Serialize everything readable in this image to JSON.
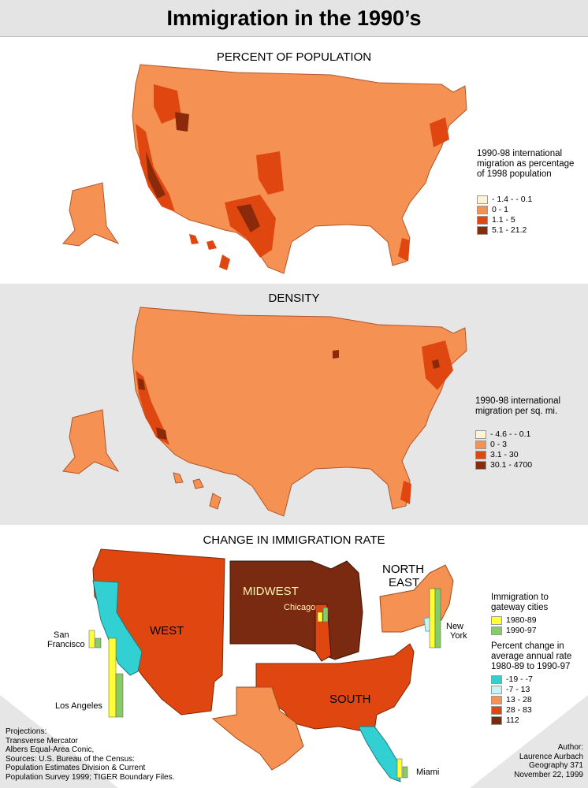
{
  "title": "Immigration in the 1990’s",
  "colors": {
    "level1": "#fdf3d6",
    "level2": "#f59253",
    "level3": "#e0460f",
    "level4": "#8a2a0a",
    "panel_gray": "#e6e6e6",
    "change_neg_big": "#33d0d3",
    "change_neg_small": "#c9f2f2",
    "change_mid": "#f59253",
    "change_high": "#e0460f",
    "change_top": "#7a2a10",
    "bar_1980s": "#ffff33",
    "bar_1990s": "#88cc66"
  },
  "panels": {
    "percent": {
      "title": "PERCENT OF POPULATION",
      "legend_title": "1990-98 international\nmigration as percentage\nof 1998 population",
      "legend": [
        "- 1.4 - - 0.1",
        "0 - 1",
        "1.1 - 5",
        "5.1 - 21.2"
      ]
    },
    "density": {
      "title": "DENSITY",
      "legend_title": "1990-98 international\nmigration per sq. mi.",
      "legend": [
        "- 4.6 - - 0.1",
        "0 - 3",
        "3.1 - 30",
        "30.1 - 4700"
      ]
    },
    "change": {
      "title": "CHANGE IN IMMIGRATION RATE",
      "regions": {
        "west": "WEST",
        "midwest": "MIDWEST",
        "south": "SOUTH",
        "northeast_line1": "NORTH",
        "northeast_line2": "EAST"
      },
      "cities": {
        "chicago": "Chicago",
        "san_francisco_line1": "San",
        "san_francisco_line2": "Francisco",
        "los_angeles": "Los Angeles",
        "new_york_line1": "New",
        "new_york_line2": "York",
        "miami": "Miami"
      },
      "bar_legend_title": "Immigration to\ngateway cities",
      "bar_legend": [
        "1980-89",
        "1990-97"
      ],
      "change_legend_title": "Percent change in\naverage annual rate\n1980-89 to 1990-97",
      "change_legend": [
        "-19 - -7",
        "-7 - 13",
        "13 - 28",
        "28 - 83",
        "112"
      ]
    }
  },
  "sources": "Projections:\nTransverse Mercator\nAlbers Equal-Area Conic,\nSources: U.S. Bureau of the Census:\nPopulation Estimates Division & Current\nPopulation Survey 1999; TIGER Boundary Files.",
  "author": "Author:\nLaurence Aurbach\nGeography 371\nNovember 22, 1999"
}
